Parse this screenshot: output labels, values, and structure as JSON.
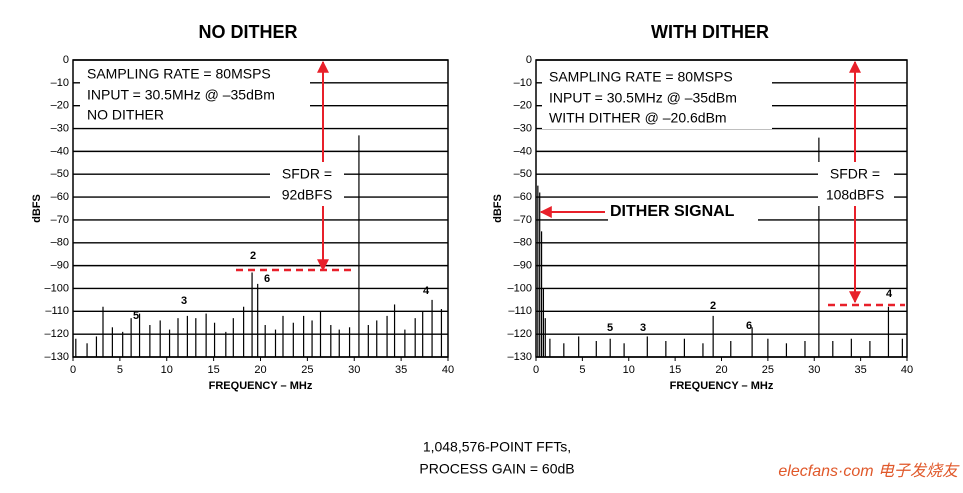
{
  "charts_title_note": [
    "1,048,576-POINT FFTs,",
    "PROCESS GAIN = 60dB"
  ],
  "watermark": "elecfans·com 电子发烧友",
  "chart_data": [
    {
      "type": "bar",
      "title": "NO DITHER",
      "x_label": "FREQUENCY – MHz",
      "y_label": "dBFS",
      "color": "#000000",
      "info": [
        "SAMPLING RATE = 80MSPS",
        "INPUT = 30.5MHz @ –35dBm",
        "NO DITHER"
      ],
      "sfdr": [
        "SFDR =",
        "92dBFS"
      ],
      "harmonic_labels": [
        "2",
        "6",
        "3",
        "4",
        "5"
      ],
      "x": [
        0.3,
        1.5,
        2.5,
        3.2,
        4.2,
        5.3,
        6.2,
        7.1,
        8.2,
        9.3,
        10.3,
        11.2,
        12.2,
        13.1,
        14.2,
        15.1,
        16.3,
        17.1,
        18.2,
        19.1,
        19.7,
        20.5,
        21.6,
        22.4,
        23.5,
        24.6,
        25.5,
        26.4,
        27.5,
        28.4,
        29.5,
        30.5,
        31.5,
        32.4,
        33.5,
        34.3,
        35.4,
        36.5,
        37.3,
        38.3,
        39.3
      ],
      "values": [
        -122,
        -124,
        -121,
        -108,
        -117,
        -119,
        -113,
        -111,
        -116,
        -114,
        -118,
        -113,
        -112,
        -113,
        -111,
        -115,
        -119,
        -113,
        -108,
        -93,
        -98,
        -116,
        -118,
        -112,
        -115,
        -112,
        -114,
        -110,
        -116,
        -118,
        -117,
        -33,
        -116,
        -114,
        -112,
        -107,
        -118,
        -113,
        -110,
        -105,
        -109
      ],
      "xlim": [
        0,
        40
      ],
      "xticks": [
        0,
        5,
        10,
        15,
        20,
        25,
        30,
        35,
        40
      ],
      "ylim": [
        -130,
        0
      ],
      "yticks": [
        0,
        {
          "value": -10,
          "label": "–10"
        },
        {
          "value": -20,
          "label": "–20"
        },
        {
          "value": -30,
          "label": "–30"
        },
        {
          "value": -40,
          "label": "–40"
        },
        {
          "value": -50,
          "label": "–50"
        },
        {
          "value": -60,
          "label": "–60"
        },
        {
          "value": -70,
          "label": "–70"
        },
        {
          "value": -80,
          "label": "–80"
        },
        {
          "value": -90,
          "label": "–90"
        },
        {
          "value": -100,
          "label": "–100"
        },
        {
          "value": -110,
          "label": "–110"
        },
        {
          "value": -120,
          "label": "–120"
        },
        {
          "value": -130,
          "label": "–130"
        }
      ],
      "grid": true
    },
    {
      "type": "bar",
      "title": "WITH DITHER",
      "x_label": "FREQUENCY – MHz",
      "y_label": "dBFS",
      "color": "#000000",
      "info": [
        "SAMPLING RATE = 80MSPS",
        "INPUT = 30.5MHz @ –35dBm",
        "WITH DITHER @ –20.6dBm"
      ],
      "sfdr": [
        "SFDR =",
        "108dBFS"
      ],
      "dither_label": "DITHER SIGNAL",
      "harmonic_labels": [
        "2",
        "4",
        "5",
        "3",
        "6"
      ],
      "x": [
        0.2,
        0.4,
        0.6,
        0.8,
        1.0,
        1.5,
        3,
        4.6,
        6.5,
        8,
        9.5,
        12,
        14,
        16,
        18,
        19.1,
        21,
        23.3,
        25,
        27,
        29,
        30.5,
        32,
        34,
        36,
        38,
        39.5
      ],
      "values": [
        -55,
        -58,
        -75,
        -100,
        -113,
        -122,
        -124,
        -121,
        -123,
        -122,
        -124,
        -121,
        -123,
        -122,
        -124,
        -112,
        -123,
        -117,
        -122,
        -124,
        -123,
        -34,
        -123,
        -122,
        -123,
        -108,
        -122
      ],
      "xlim": [
        0,
        40
      ],
      "xticks": [
        0,
        5,
        10,
        15,
        20,
        25,
        30,
        35,
        40
      ],
      "ylim": [
        -130,
        0
      ],
      "yticks": [
        0,
        {
          "value": -10,
          "label": "–10"
        },
        {
          "value": -20,
          "label": "–20"
        },
        {
          "value": -30,
          "label": "–30"
        },
        {
          "value": -40,
          "label": "–40"
        },
        {
          "value": -50,
          "label": "–50"
        },
        {
          "value": -60,
          "label": "–60"
        },
        {
          "value": -70,
          "label": "–70"
        },
        {
          "value": -80,
          "label": "–80"
        },
        {
          "value": -90,
          "label": "–90"
        },
        {
          "value": -100,
          "label": "–100"
        },
        {
          "value": -110,
          "label": "–110"
        },
        {
          "value": -120,
          "label": "–120"
        },
        {
          "value": -130,
          "label": "–130"
        }
      ],
      "grid": true
    }
  ]
}
